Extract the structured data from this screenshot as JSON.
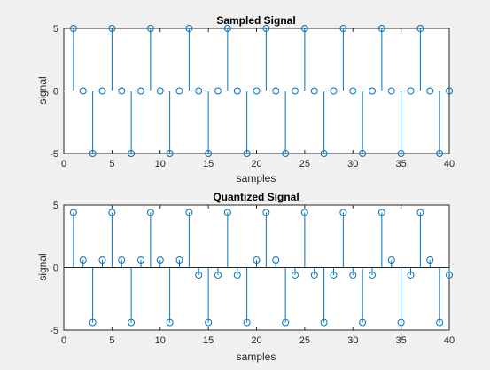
{
  "figure": {
    "background": "#f0f0f0",
    "stem_color": "#0072bd"
  },
  "chart_data": [
    {
      "type": "stem",
      "title": "Sampled Signal",
      "xlabel": "samples",
      "ylabel": "signal",
      "xlim": [
        0,
        40
      ],
      "ylim": [
        -5,
        5
      ],
      "xticks": [
        0,
        5,
        10,
        15,
        20,
        25,
        30,
        35,
        40
      ],
      "yticks": [
        -5,
        0,
        5
      ],
      "x": [
        1,
        2,
        3,
        4,
        5,
        6,
        7,
        8,
        9,
        10,
        11,
        12,
        13,
        14,
        15,
        16,
        17,
        18,
        19,
        20,
        21,
        22,
        23,
        24,
        25,
        26,
        27,
        28,
        29,
        30,
        31,
        32,
        33,
        34,
        35,
        36,
        37,
        38,
        39,
        40
      ],
      "y": [
        5,
        0,
        -5,
        0,
        5,
        0,
        -5,
        0,
        5,
        0,
        -5,
        0,
        5,
        0,
        -5,
        0,
        5,
        0,
        -5,
        0,
        5,
        0,
        -5,
        0,
        5,
        0,
        -5,
        0,
        5,
        0,
        -5,
        0,
        5,
        0,
        -5,
        0,
        5,
        0,
        -5,
        0
      ]
    },
    {
      "type": "stem",
      "title": "Quantized Signal",
      "xlabel": "samples",
      "ylabel": "signal",
      "xlim": [
        0,
        40
      ],
      "ylim": [
        -5,
        5
      ],
      "xticks": [
        0,
        5,
        10,
        15,
        20,
        25,
        30,
        35,
        40
      ],
      "yticks": [
        -5,
        0,
        5
      ],
      "x": [
        1,
        2,
        3,
        4,
        5,
        6,
        7,
        8,
        9,
        10,
        11,
        12,
        13,
        14,
        15,
        16,
        17,
        18,
        19,
        20,
        21,
        22,
        23,
        24,
        25,
        26,
        27,
        28,
        29,
        30,
        31,
        32,
        33,
        34,
        35,
        36,
        37,
        38,
        39,
        40
      ],
      "y": [
        4.4,
        0.6,
        -4.4,
        0.6,
        4.4,
        0.6,
        -4.4,
        0.6,
        4.4,
        0.6,
        -4.4,
        0.6,
        4.4,
        -0.6,
        -4.4,
        -0.6,
        4.4,
        -0.6,
        -4.4,
        0.6,
        4.4,
        0.6,
        -4.4,
        -0.6,
        4.4,
        -0.6,
        -4.4,
        -0.6,
        4.4,
        -0.6,
        -4.4,
        -0.6,
        4.4,
        0.6,
        -4.4,
        -0.6,
        4.4,
        0.6,
        -4.4,
        -0.6
      ]
    }
  ]
}
